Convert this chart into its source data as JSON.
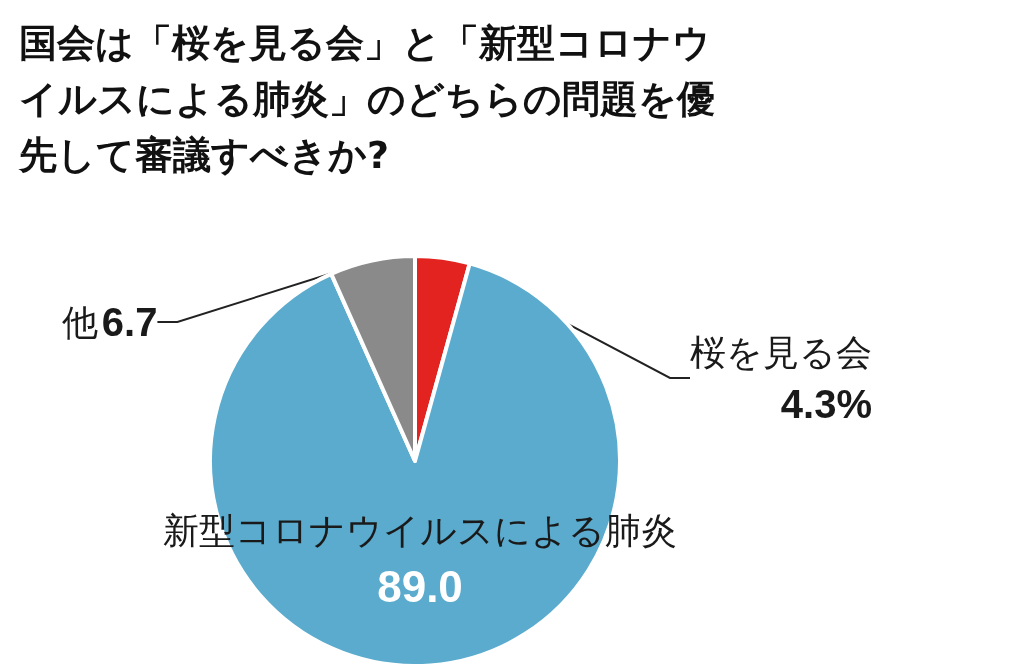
{
  "chart_data": {
    "type": "pie",
    "title": "国会は「桜を見る会」と「新型コロナウイルスによる肺炎」のどちらの問題を優先して審議すべきか?",
    "categories": [
      "桜を見る会",
      "新型コロナウイルスによる肺炎",
      "他"
    ],
    "values": [
      4.3,
      89.0,
      6.7
    ],
    "value_labels": [
      "4.3%",
      "89.0",
      "6.7"
    ],
    "colors": [
      "#e2231f",
      "#5aabcd",
      "#8a8a8a"
    ],
    "legend": false
  }
}
